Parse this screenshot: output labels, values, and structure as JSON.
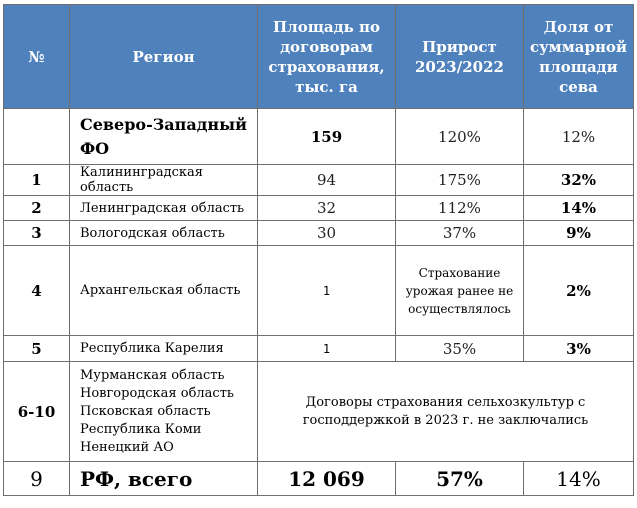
{
  "header": {
    "num": "№",
    "region": "Регион",
    "area": "Площадь по договорам страхования, тыс. га",
    "growth": "Прирост 2023/2022",
    "share": "Доля от суммарной площади сева"
  },
  "district": {
    "name": "Северо-Западный ФО",
    "area": "159",
    "growth": "120%",
    "share": "12%"
  },
  "rows": [
    {
      "num": "1",
      "region": "Калининградская область",
      "area": "94",
      "growth": "175%",
      "share": "32%"
    },
    {
      "num": "2",
      "region": "Ленинградская область",
      "area": "32",
      "growth": "112%",
      "share": "14%"
    },
    {
      "num": "3",
      "region": "Вологодская область",
      "area": "30",
      "growth": "37%",
      "share": "9%"
    },
    {
      "num": "4",
      "region": "Архангельская область",
      "area": "1",
      "growth": "Страхование урожая ранее не осуществлялось",
      "share": "2%"
    },
    {
      "num": "5",
      "region": "Республика Карелия",
      "area": "1",
      "growth": "35%",
      "share": "3%"
    }
  ],
  "group": {
    "num": "6-10",
    "regions": [
      "Мурманская область",
      "Новгородская область",
      "Псковская область",
      "Республика Коми",
      "Ненецкий АО"
    ],
    "note": "Договоры страхования сельхозкультур с господдержкой в 2023 г. не заключались"
  },
  "total": {
    "num": "9",
    "label": "РФ, всего",
    "area": "12 069",
    "growth": "57%",
    "share": "14%"
  }
}
